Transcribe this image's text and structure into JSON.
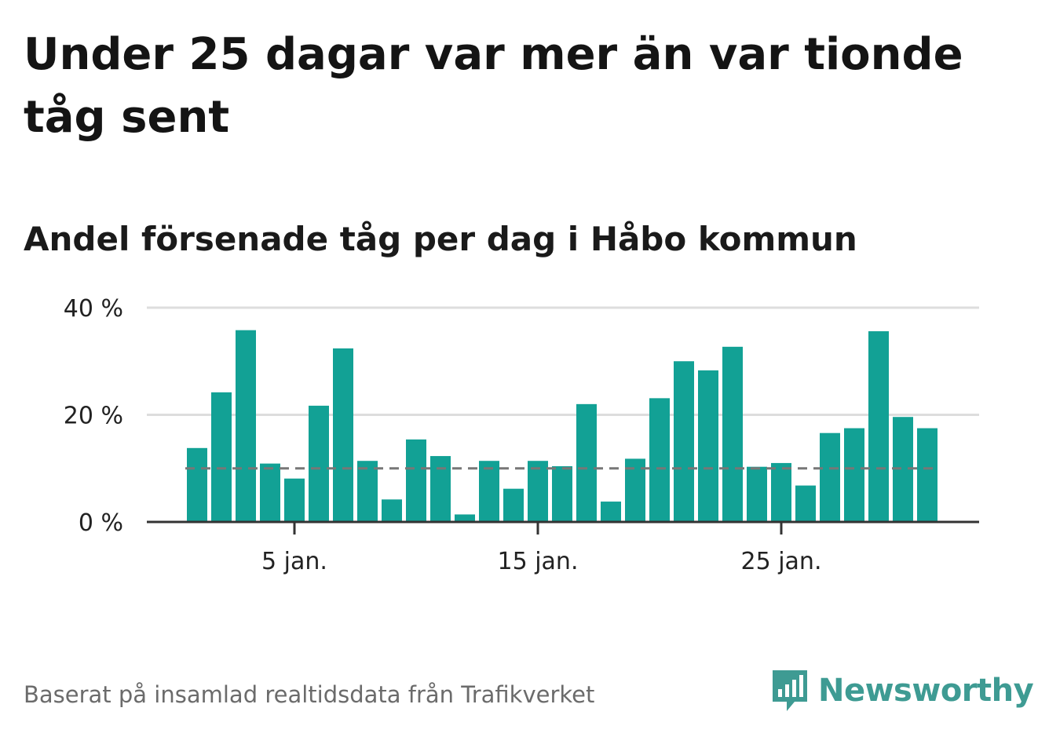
{
  "title": "Under 25 dagar var mer än var tionde tåg sent",
  "subtitle": "Andel försenade tåg per dag i Håbo kommun",
  "source": "Baserat på insamlad realtidsdata från Trafikverket",
  "brand": {
    "name": "Newsworthy",
    "icon": "newsworthy-logo-icon",
    "color": "#3e9b93"
  },
  "colors": {
    "bar": "#12a195",
    "threshold": "#777777",
    "grid": "#dddddd",
    "axis": "#333333"
  },
  "chart_data": {
    "type": "bar",
    "x": [
      1,
      2,
      3,
      4,
      5,
      6,
      7,
      8,
      9,
      10,
      11,
      12,
      13,
      14,
      15,
      16,
      17,
      18,
      19,
      20,
      21,
      22,
      23,
      24,
      25,
      26,
      27,
      28,
      29,
      30,
      31
    ],
    "values": [
      13.8,
      24.2,
      35.8,
      10.9,
      8.1,
      21.7,
      32.4,
      11.4,
      4.2,
      15.4,
      12.3,
      1.4,
      11.4,
      6.2,
      11.4,
      10.4,
      22.0,
      3.8,
      11.8,
      23.1,
      30.0,
      28.3,
      32.7,
      10.3,
      11.0,
      6.8,
      16.6,
      17.5,
      35.6,
      19.6,
      17.5
    ],
    "ylim": [
      0,
      40
    ],
    "yticks": [
      0,
      20,
      40
    ],
    "ytick_labels": [
      "0 %",
      "20 %",
      "40 %"
    ],
    "xticks": [
      5,
      15,
      25
    ],
    "xtick_labels": [
      "5 jan.",
      "15 jan.",
      "25 jan."
    ],
    "threshold": 10,
    "grid": true
  }
}
